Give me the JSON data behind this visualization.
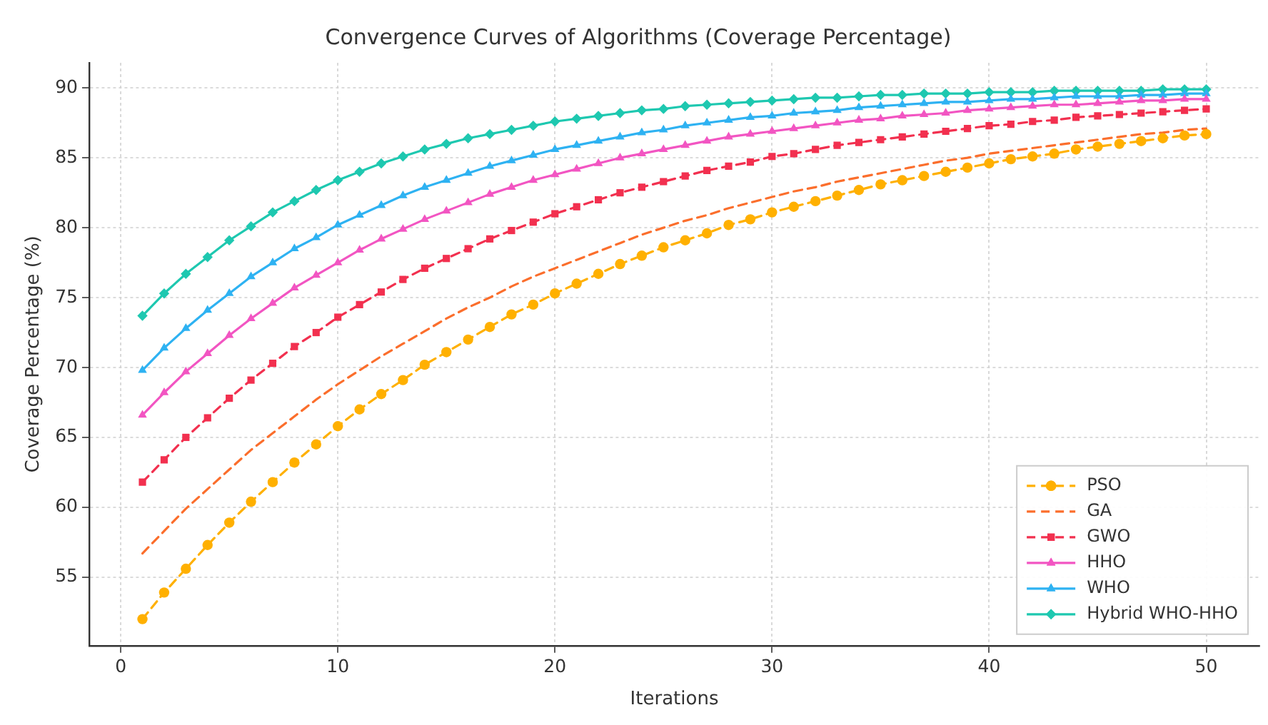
{
  "chart_data": {
    "type": "line",
    "title": "Convergence Curves of Algorithms (Coverage Percentage)",
    "xlabel": "Iterations",
    "ylabel": "Coverage Percentage (%)",
    "x": [
      1,
      2,
      3,
      4,
      5,
      6,
      7,
      8,
      9,
      10,
      11,
      12,
      13,
      14,
      15,
      16,
      17,
      18,
      19,
      20,
      21,
      22,
      23,
      24,
      25,
      26,
      27,
      28,
      29,
      30,
      31,
      32,
      33,
      34,
      35,
      36,
      37,
      38,
      39,
      40,
      41,
      42,
      43,
      44,
      45,
      46,
      47,
      48,
      49,
      50
    ],
    "xlim": [
      -1.45,
      52.45
    ],
    "ylim": [
      50.1,
      91.8
    ],
    "xticks": [
      0,
      10,
      20,
      30,
      40,
      50
    ],
    "yticks": [
      55,
      60,
      65,
      70,
      75,
      80,
      85,
      90
    ],
    "grid": true,
    "legend": "bottom right",
    "series": [
      {
        "name": "PSO",
        "color": "#ffb000",
        "marker": "circle",
        "line_style": "dashed",
        "values": [
          52.0,
          53.9,
          55.6,
          57.3,
          58.9,
          60.4,
          61.8,
          63.2,
          64.5,
          65.8,
          67.0,
          68.1,
          69.1,
          70.2,
          71.1,
          72.0,
          72.9,
          73.8,
          74.5,
          75.3,
          76.0,
          76.7,
          77.4,
          78.0,
          78.6,
          79.1,
          79.6,
          80.2,
          80.6,
          81.1,
          81.5,
          81.9,
          82.3,
          82.7,
          83.1,
          83.4,
          83.7,
          84.0,
          84.3,
          84.6,
          84.9,
          85.1,
          85.3,
          85.6,
          85.8,
          86.0,
          86.2,
          86.4,
          86.6,
          86.7
        ]
      },
      {
        "name": "GA",
        "color": "#fb6e2c",
        "marker": "none",
        "line_style": "dashed",
        "values": [
          56.7,
          58.3,
          59.9,
          61.3,
          62.7,
          64.1,
          65.3,
          66.5,
          67.7,
          68.8,
          69.8,
          70.8,
          71.7,
          72.6,
          73.5,
          74.3,
          75.0,
          75.8,
          76.5,
          77.1,
          77.7,
          78.3,
          78.9,
          79.5,
          80.0,
          80.5,
          80.9,
          81.4,
          81.8,
          82.2,
          82.6,
          82.9,
          83.3,
          83.6,
          83.9,
          84.2,
          84.5,
          84.8,
          85.0,
          85.3,
          85.5,
          85.7,
          85.9,
          86.1,
          86.3,
          86.5,
          86.7,
          86.8,
          87.0,
          87.1
        ]
      },
      {
        "name": "GWO",
        "color": "#f2304f",
        "marker": "square",
        "line_style": "dashed",
        "values": [
          61.8,
          63.4,
          65.0,
          66.4,
          67.8,
          69.1,
          70.3,
          71.5,
          72.5,
          73.6,
          74.5,
          75.4,
          76.3,
          77.1,
          77.8,
          78.5,
          79.2,
          79.8,
          80.4,
          81.0,
          81.5,
          82.0,
          82.5,
          82.9,
          83.3,
          83.7,
          84.1,
          84.4,
          84.7,
          85.1,
          85.3,
          85.6,
          85.9,
          86.1,
          86.3,
          86.5,
          86.7,
          86.9,
          87.1,
          87.3,
          87.4,
          87.6,
          87.7,
          87.9,
          88.0,
          88.1,
          88.2,
          88.3,
          88.4,
          88.5
        ]
      },
      {
        "name": "HHO",
        "color": "#f255c2",
        "marker": "triangle",
        "line_style": "solid",
        "values": [
          66.6,
          68.2,
          69.7,
          71.0,
          72.3,
          73.5,
          74.6,
          75.7,
          76.6,
          77.5,
          78.4,
          79.2,
          79.9,
          80.6,
          81.2,
          81.8,
          82.4,
          82.9,
          83.4,
          83.8,
          84.2,
          84.6,
          85.0,
          85.3,
          85.6,
          85.9,
          86.2,
          86.5,
          86.7,
          86.9,
          87.1,
          87.3,
          87.5,
          87.7,
          87.8,
          88.0,
          88.1,
          88.2,
          88.4,
          88.5,
          88.6,
          88.7,
          88.8,
          88.8,
          88.9,
          89.0,
          89.1,
          89.1,
          89.2,
          89.2
        ]
      },
      {
        "name": "WHO",
        "color": "#2eb2f2",
        "marker": "triangle",
        "line_style": "solid",
        "values": [
          69.8,
          71.4,
          72.8,
          74.1,
          75.3,
          76.5,
          77.5,
          78.5,
          79.3,
          80.2,
          80.9,
          81.6,
          82.3,
          82.9,
          83.4,
          83.9,
          84.4,
          84.8,
          85.2,
          85.6,
          85.9,
          86.2,
          86.5,
          86.8,
          87.0,
          87.3,
          87.5,
          87.7,
          87.9,
          88.0,
          88.2,
          88.3,
          88.4,
          88.6,
          88.7,
          88.8,
          88.9,
          89.0,
          89.0,
          89.1,
          89.2,
          89.2,
          89.3,
          89.4,
          89.4,
          89.4,
          89.5,
          89.5,
          89.6,
          89.6
        ]
      },
      {
        "name": "Hybrid WHO-HHO",
        "color": "#1ec8b0",
        "marker": "diamond",
        "line_style": "solid",
        "values": [
          73.7,
          75.3,
          76.7,
          77.9,
          79.1,
          80.1,
          81.1,
          81.9,
          82.7,
          83.4,
          84.0,
          84.6,
          85.1,
          85.6,
          86.0,
          86.4,
          86.7,
          87.0,
          87.3,
          87.6,
          87.8,
          88.0,
          88.2,
          88.4,
          88.5,
          88.7,
          88.8,
          88.9,
          89.0,
          89.1,
          89.2,
          89.3,
          89.3,
          89.4,
          89.5,
          89.5,
          89.6,
          89.6,
          89.6,
          89.7,
          89.7,
          89.7,
          89.8,
          89.8,
          89.8,
          89.8,
          89.8,
          89.9,
          89.9,
          89.9
        ]
      }
    ]
  }
}
